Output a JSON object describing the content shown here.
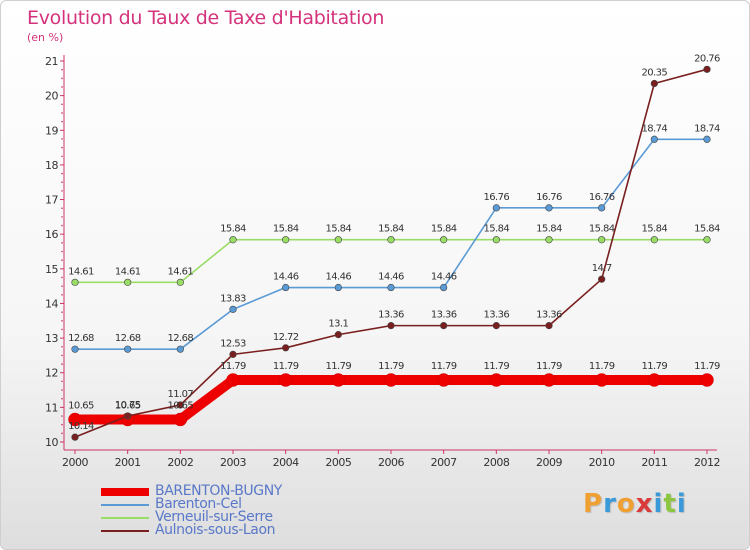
{
  "title": "Evolution du Taux de Taxe d'Habitation",
  "subtitle": "(en %)",
  "logo": {
    "text": "Proxiti",
    "colors": [
      "#f0a030",
      "#3a9ad9",
      "#f0a030",
      "#d93a3a",
      "#3a9ad9",
      "#8cc63f",
      "#3a9ad9"
    ]
  },
  "chart_data": {
    "type": "line",
    "x": [
      2000,
      2001,
      2002,
      2003,
      2004,
      2005,
      2006,
      2007,
      2008,
      2009,
      2010,
      2011,
      2012
    ],
    "ylim": [
      10,
      21
    ],
    "yticks": [
      10,
      11,
      12,
      13,
      14,
      15,
      16,
      17,
      18,
      19,
      20,
      21
    ],
    "grid": false,
    "legend_position": "bottom",
    "series": [
      {
        "name": "BARENTON-BUGNY",
        "color": "#ee0000",
        "style": "thick",
        "values": [
          10.65,
          10.65,
          10.65,
          11.79,
          11.79,
          11.79,
          11.79,
          11.79,
          11.79,
          11.79,
          11.79,
          11.79,
          11.79
        ]
      },
      {
        "name": "Barenton-Cel",
        "color": "#5b9bd5",
        "style": "thin",
        "values": [
          12.68,
          12.68,
          12.68,
          13.83,
          14.46,
          14.46,
          14.46,
          14.46,
          16.76,
          16.76,
          16.76,
          18.74,
          18.74
        ]
      },
      {
        "name": "Verneuil-sur-Serre",
        "color": "#99dd66",
        "style": "thin",
        "values": [
          14.61,
          14.61,
          14.61,
          15.84,
          15.84,
          15.84,
          15.84,
          15.84,
          15.84,
          15.84,
          15.84,
          15.84,
          15.84
        ]
      },
      {
        "name": "Aulnois-sous-Laon",
        "color": "#7a1f1f",
        "style": "thin",
        "values": [
          10.14,
          10.75,
          11.07,
          12.53,
          12.72,
          13.1,
          13.36,
          13.36,
          13.36,
          13.36,
          14.7,
          20.35,
          20.76
        ]
      }
    ],
    "data_labels": [
      [
        "10.65",
        "10.65",
        "10.65",
        "11.79",
        "11.79",
        "11.79",
        "11.79",
        "11.79",
        "11.79",
        "11.79",
        "11.79",
        "11.79",
        "11.79"
      ],
      [
        "12.68",
        "12.68",
        "12.68",
        "13.83",
        "14.46",
        "14.46",
        "14.46",
        "14.46",
        "16.76",
        "16.76",
        "16.76",
        "18.74",
        "18.74"
      ],
      [
        "14.61",
        "14.61",
        "14.61",
        "15.84",
        "15.84",
        "15.84",
        "15.84",
        "15.84",
        "15.84",
        "15.84",
        "15.84",
        "15.84",
        "15.84"
      ],
      [
        "10.14",
        "10.75",
        "11.07",
        "12.53",
        "12.72",
        "13.1",
        "13.36",
        "13.36",
        "13.36",
        "13.36",
        "14.7",
        "20.35",
        "20.76"
      ]
    ]
  }
}
